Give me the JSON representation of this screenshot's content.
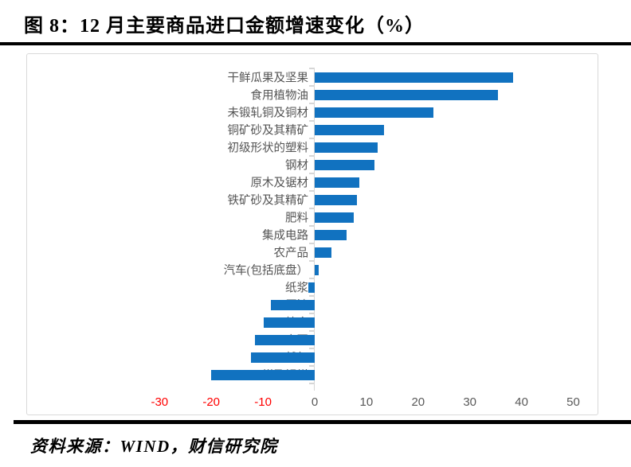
{
  "page": {
    "title": "图 8：12 月主要商品进口金额增速变化（%）",
    "source": "资料来源：WIND，财信研究院"
  },
  "chart_data": {
    "type": "bar",
    "orientation": "horizontal",
    "title": "12 月主要商品进口金额增速变化（%）",
    "xlabel": "",
    "ylabel": "",
    "xlim": [
      -30,
      50
    ],
    "x_ticks": [
      -30,
      -20,
      -10,
      0,
      10,
      20,
      30,
      40,
      50
    ],
    "grid": false,
    "legend": "none",
    "bar_color": "#1172c0",
    "tick_label_color": "#595959",
    "negative_tick_label_color": "#ff0000",
    "categories": [
      "干鲜瓜果及坚果",
      "食用植物油",
      "未锻轧铜及铜材",
      "铜矿砂及其精矿",
      "初级形状的塑料",
      "钢材",
      "原木及锯材",
      "铁矿砂及其精矿",
      "肥料",
      "集成电路",
      "农产品",
      "汽车(包括底盘）",
      "纸浆",
      "原油",
      "粮食",
      "大豆",
      "天然气",
      "煤及褐煤"
    ],
    "values": [
      38.3,
      35.4,
      23.0,
      13.4,
      12.2,
      11.6,
      8.7,
      8.2,
      7.5,
      6.1,
      3.2,
      0.7,
      -1.2,
      -8.5,
      -9.8,
      -11.5,
      -12.4,
      -20.0
    ]
  }
}
